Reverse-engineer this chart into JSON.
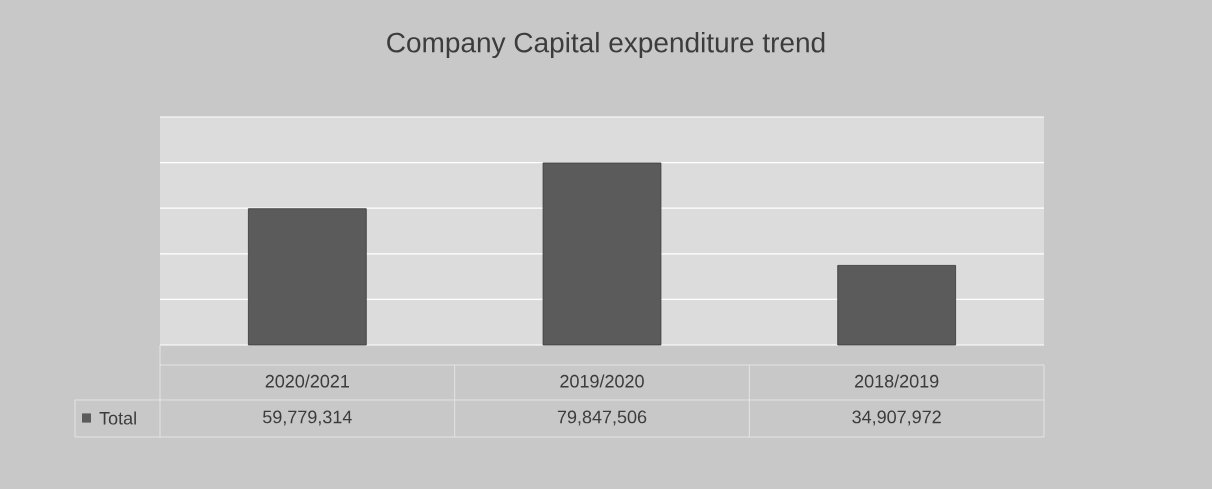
{
  "chart_data": {
    "type": "bar",
    "title": "Company Capital expenditure trend",
    "categories": [
      "2020/2021",
      "2019/2020",
      "2018/2019"
    ],
    "series": [
      {
        "name": "Total",
        "color": "#5b5b5b",
        "values": [
          59779314,
          79847506,
          34907972
        ],
        "value_labels": [
          "59,779,314",
          "79,847,506",
          "34,907,972"
        ]
      }
    ],
    "ylim": [
      0,
      100000000
    ],
    "yticks": [
      {
        "value": 0,
        "label": null
      },
      {
        "value": 20000000,
        "label": null
      },
      {
        "value": 40000000,
        "label": null
      },
      {
        "value": 60000000,
        "label": null
      },
      {
        "value": 80000000,
        "label": null
      },
      {
        "value": 100000000,
        "label": null
      }
    ],
    "grid": "y",
    "tick_labels": "x"
  }
}
